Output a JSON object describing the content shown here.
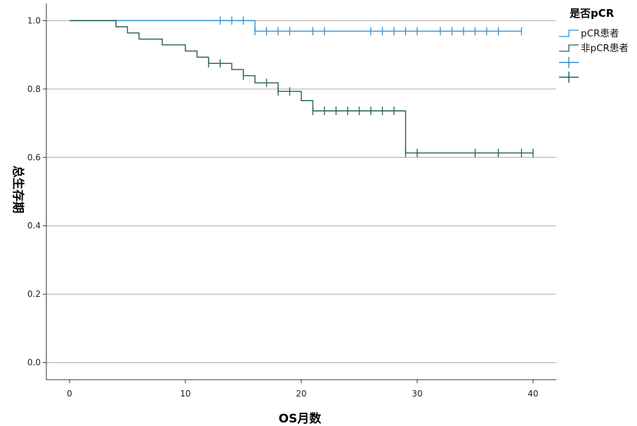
{
  "chart_data": {
    "type": "line",
    "subtype": "kaplan-meier",
    "xlabel": "OS月数",
    "ylabel": "总生存期",
    "xlim": [
      -2,
      42
    ],
    "ylim": [
      -0.05,
      1.05
    ],
    "xticks": [
      0,
      10,
      20,
      30,
      40
    ],
    "yticks": [
      0.0,
      0.2,
      0.4,
      0.6,
      0.8,
      1.0
    ],
    "xtick_labels": [
      "0",
      "10",
      "20",
      "30",
      "40"
    ],
    "ytick_labels": [
      "0.0",
      "0.2",
      "0.4",
      "0.6",
      "0.8",
      "1.0"
    ],
    "grid": "horizontal",
    "legend": {
      "title": "是否pCR",
      "placement": "top-right",
      "entries": [
        "pCR患者",
        "非pCR患者",
        "",
        ""
      ]
    },
    "series": [
      {
        "name": "pCR患者",
        "color": "#2e8fd6",
        "steps": [
          [
            0,
            1.0
          ],
          [
            16,
            0.969
          ],
          [
            39,
            0.969
          ]
        ],
        "censored": [
          [
            13,
            1.0
          ],
          [
            14,
            1.0
          ],
          [
            15,
            1.0
          ],
          [
            16,
            0.969
          ],
          [
            17,
            0.969
          ],
          [
            18,
            0.969
          ],
          [
            19,
            0.969
          ],
          [
            21,
            0.969
          ],
          [
            22,
            0.969
          ],
          [
            26,
            0.969
          ],
          [
            27,
            0.969
          ],
          [
            28,
            0.969
          ],
          [
            29,
            0.969
          ],
          [
            30,
            0.969
          ],
          [
            32,
            0.969
          ],
          [
            33,
            0.969
          ],
          [
            34,
            0.969
          ],
          [
            35,
            0.969
          ],
          [
            36,
            0.969
          ],
          [
            37,
            0.969
          ],
          [
            39,
            0.969
          ]
        ]
      },
      {
        "name": "非pCR患者",
        "color": "#1f5e52",
        "steps": [
          [
            0,
            1.0
          ],
          [
            4,
            0.982
          ],
          [
            5,
            0.964
          ],
          [
            6,
            0.946
          ],
          [
            8,
            0.929
          ],
          [
            10,
            0.911
          ],
          [
            11,
            0.893
          ],
          [
            12,
            0.875
          ],
          [
            14,
            0.857
          ],
          [
            15,
            0.839
          ],
          [
            16,
            0.818
          ],
          [
            18,
            0.793
          ],
          [
            20,
            0.766
          ],
          [
            21,
            0.736
          ],
          [
            29,
            0.613
          ],
          [
            40,
            0.613
          ]
        ],
        "censored": [
          [
            12,
            0.875
          ],
          [
            13,
            0.875
          ],
          [
            15,
            0.839
          ],
          [
            17,
            0.818
          ],
          [
            18,
            0.793
          ],
          [
            19,
            0.793
          ],
          [
            21,
            0.736
          ],
          [
            22,
            0.736
          ],
          [
            23,
            0.736
          ],
          [
            24,
            0.736
          ],
          [
            25,
            0.736
          ],
          [
            26,
            0.736
          ],
          [
            27,
            0.736
          ],
          [
            28,
            0.736
          ],
          [
            29,
            0.613
          ],
          [
            30,
            0.613
          ],
          [
            35,
            0.613
          ],
          [
            37,
            0.613
          ],
          [
            39,
            0.613
          ],
          [
            40,
            0.613
          ]
        ]
      }
    ]
  }
}
